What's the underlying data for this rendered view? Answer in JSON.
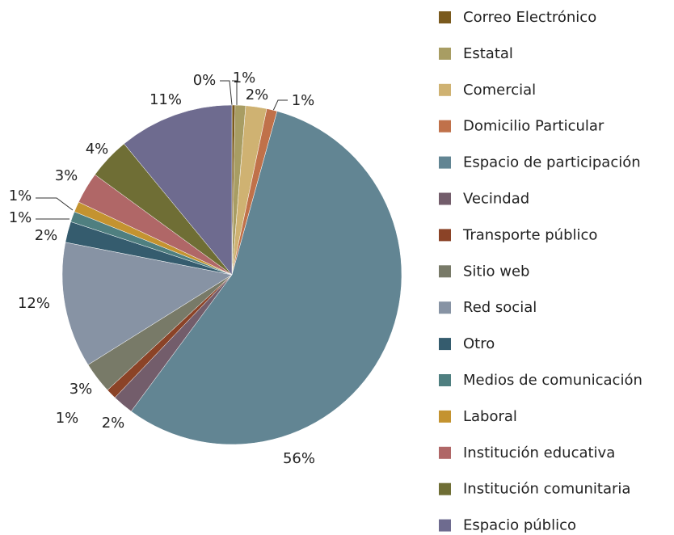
{
  "chart_data": {
    "type": "pie",
    "categories": [
      "Correo Electrónico",
      "Estatal",
      "Comercial",
      "Domicilio Particular",
      "Espacio de participación",
      "Vecindad",
      "Transporte público",
      "Sitio web",
      "Red social",
      "Otro",
      "Medios de comunicación",
      "Laboral",
      "Institución educativa",
      "Institución comunitaria",
      "Espacio público"
    ],
    "values": [
      0.3,
      1,
      2,
      1,
      56,
      2,
      1,
      3,
      12,
      2,
      1,
      1,
      3,
      4,
      11
    ],
    "value_labels": [
      "0%",
      "1%",
      "2%",
      "1%",
      "56%",
      "2%",
      "1%",
      "3%",
      "12%",
      "2%",
      "1%",
      "1%",
      "3%",
      "4%",
      "11%"
    ],
    "colors": [
      "#7a5a1e",
      "#a89d63",
      "#cfb272",
      "#c0714a",
      "#628593",
      "#735d6b",
      "#8b4327",
      "#787a68",
      "#8793a4",
      "#355c6e",
      "#4f7f80",
      "#c49330",
      "#b06767",
      "#6f6e35",
      "#6e6b8f"
    ],
    "legend": "right"
  }
}
